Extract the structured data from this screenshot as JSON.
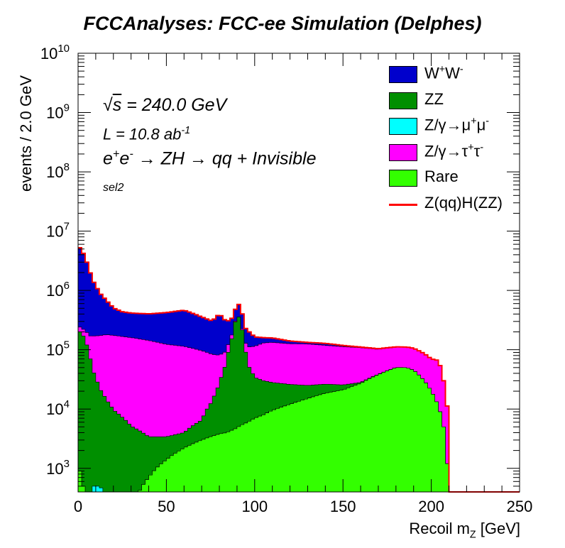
{
  "chart_data": {
    "type": "area",
    "stacked": true,
    "title": "FCCAnalyses: FCC-ee Simulation (Delphes)",
    "xlabel": "Recoil m_Z [GeV]",
    "ylabel": "events / 2.0 GeV",
    "xlim": [
      0,
      250
    ],
    "ylim_log": [
      400,
      10000000000
    ],
    "yscale": "log",
    "x_ticks": [
      "0",
      "50",
      "100",
      "150",
      "200",
      "250"
    ],
    "y_ticks": [
      {
        "base": "10",
        "exp": "3"
      },
      {
        "base": "10",
        "exp": "4"
      },
      {
        "base": "10",
        "exp": "5"
      },
      {
        "base": "10",
        "exp": "6"
      },
      {
        "base": "10",
        "exp": "7"
      },
      {
        "base": "10",
        "exp": "8"
      },
      {
        "base": "10",
        "exp": "9"
      },
      {
        "base": "10",
        "exp": "10"
      }
    ],
    "annotations": {
      "sqrt_s": "= 240.0 GeV",
      "lumi": "L = 10.8 ab",
      "lumi_exp": "-1",
      "process_a": "e",
      "process_b": "e",
      "process_c": "→ ZH → qq + Invisible",
      "selection": "sel2"
    },
    "x_bin_centers": [
      1,
      3,
      5,
      7,
      9,
      12,
      16,
      20,
      25,
      30,
      40,
      50,
      60,
      70,
      76,
      80,
      84,
      88,
      90,
      92,
      94,
      96,
      100,
      105,
      110,
      120,
      130,
      140,
      150,
      160,
      170,
      180,
      186,
      190,
      196,
      200,
      204,
      207,
      209,
      211,
      230,
      250
    ],
    "series": [
      {
        "name": "Rare",
        "color": "#33ff00",
        "values": [
          900,
          500,
          350,
          250,
          200,
          150,
          120,
          100,
          100,
          150,
          700,
          1400,
          2200,
          3000,
          3500,
          3800,
          4000,
          4500,
          4800,
          5300,
          5600,
          6000,
          7000,
          8000,
          9500,
          12000,
          15000,
          18500,
          21000,
          27000,
          38000,
          50000,
          50000,
          45000,
          30000,
          20000,
          11000,
          5000,
          1200,
          0,
          0,
          0
        ]
      },
      {
        "name": "Z/γ→μ⁺μ⁻",
        "color": "#00ffff",
        "values": [
          0,
          0,
          0,
          0,
          300,
          350,
          250,
          0,
          0,
          0,
          0,
          0,
          0,
          0,
          0,
          0,
          0,
          0,
          0,
          0,
          0,
          0,
          0,
          0,
          0,
          0,
          0,
          0,
          0,
          0,
          0,
          0,
          0,
          0,
          0,
          0,
          0,
          0,
          0,
          0,
          0,
          0
        ]
      },
      {
        "name": "ZZ",
        "color": "#008f00",
        "values": [
          200000,
          170000,
          120000,
          70000,
          40000,
          22000,
          14000,
          9500,
          7200,
          5000,
          2700,
          2000,
          1800,
          3500,
          10000,
          22000,
          55000,
          180000,
          400000,
          300000,
          120000,
          50000,
          27000,
          22000,
          18500,
          14000,
          10000,
          7800,
          4500,
          1000,
          500,
          200,
          100,
          100,
          0,
          0,
          0,
          0,
          0,
          0,
          0,
          0
        ]
      },
      {
        "name": "Z/γ→τ⁺τ⁻",
        "color": "#ff00ff",
        "values": [
          40000,
          50000,
          75000,
          100000,
          130000,
          150000,
          165000,
          165000,
          160000,
          155000,
          140000,
          120000,
          110000,
          90000,
          70000,
          55000,
          35000,
          20000,
          0,
          0,
          20000,
          55000,
          80000,
          100000,
          105000,
          100000,
          100000,
          92000,
          87000,
          80000,
          63000,
          60000,
          60000,
          60000,
          55000,
          50000,
          55000,
          25000,
          10000,
          0,
          0,
          0
        ]
      },
      {
        "name": "W⁺W⁻",
        "color": "#0000cc",
        "values": [
          5000000,
          4000000,
          2800000,
          1800000,
          1200000,
          750000,
          500000,
          330000,
          270000,
          255000,
          260000,
          300000,
          350000,
          260000,
          220000,
          320000,
          200000,
          150000,
          200000,
          250000,
          100000,
          100000,
          50000,
          30000,
          25000,
          14000,
          8000,
          7000,
          5000,
          3000,
          2000,
          1500,
          1000,
          800,
          500,
          300,
          200,
          100,
          50,
          0,
          0,
          0
        ]
      },
      {
        "name": "Z(qq)H(ZZ)",
        "color": "#ff0000",
        "line": true,
        "values": [
          5240000,
          4220000,
          2995000,
          1970000,
          1370000,
          922000,
          679000,
          505000,
          437000,
          415000,
          403000,
          423000,
          464000,
          357000,
          304000,
          401000,
          294000,
          355000,
          605000,
          556000,
          246000,
          211000,
          164000,
          160000,
          158000,
          140000,
          133000,
          128000,
          118000,
          111000,
          104000,
          112000,
          111000,
          106000,
          86000,
          70000,
          66000,
          30000,
          11250,
          400,
          400,
          400
        ]
      }
    ]
  }
}
